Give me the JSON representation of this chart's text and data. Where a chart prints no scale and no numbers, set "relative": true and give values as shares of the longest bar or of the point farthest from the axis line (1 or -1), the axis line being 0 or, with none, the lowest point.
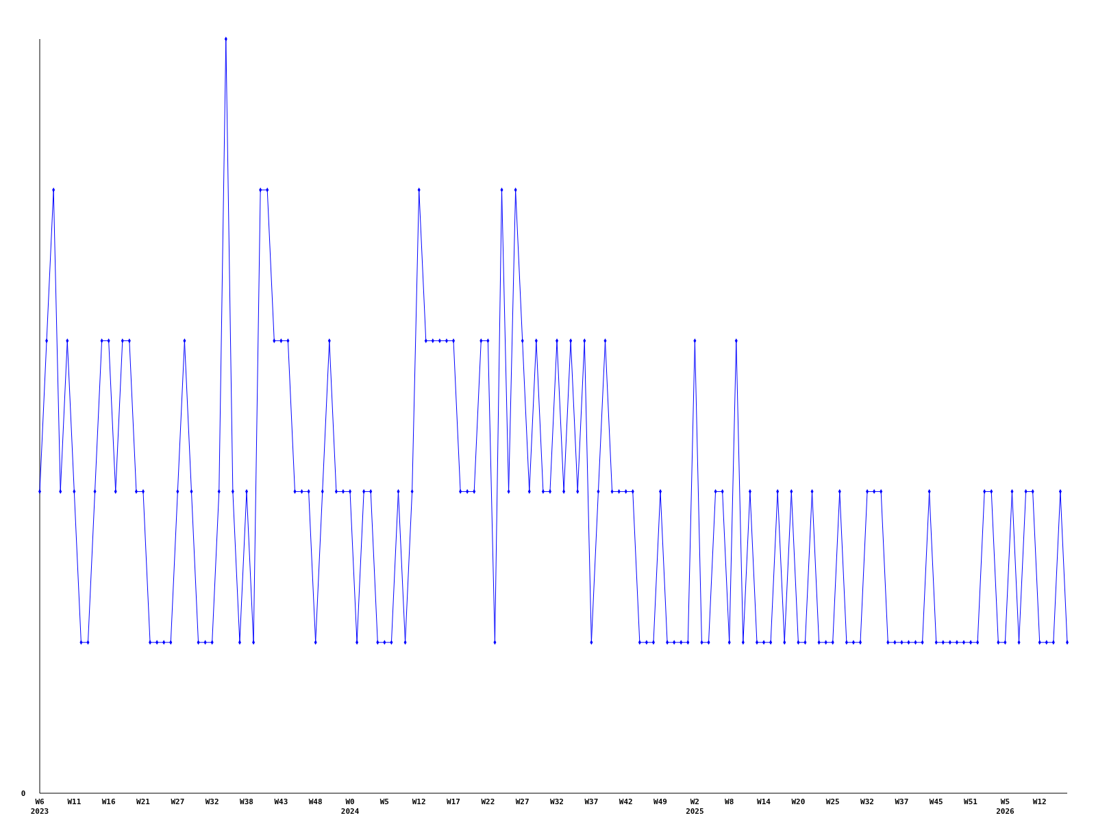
{
  "chart_data": {
    "type": "line",
    "relative": true,
    "annotations": [
      "0"
    ],
    "marker": "diamond",
    "line_style": "solid",
    "grid": false,
    "legend": false,
    "categories": [
      "W6\n2023",
      null,
      null,
      null,
      null,
      "W11",
      null,
      null,
      null,
      null,
      "W16",
      null,
      null,
      null,
      null,
      "W21",
      null,
      null,
      null,
      null,
      "W27",
      null,
      null,
      null,
      null,
      "W32",
      null,
      null,
      null,
      null,
      "W38",
      null,
      null,
      null,
      null,
      "W43",
      null,
      null,
      null,
      null,
      "W48",
      null,
      null,
      null,
      null,
      "W0\n2024",
      null,
      null,
      null,
      null,
      "W5",
      null,
      null,
      null,
      null,
      "W12",
      null,
      null,
      null,
      null,
      "W17",
      null,
      null,
      null,
      null,
      "W22",
      null,
      null,
      null,
      null,
      "W27",
      null,
      null,
      null,
      null,
      "W32",
      null,
      null,
      null,
      null,
      "W37",
      null,
      null,
      null,
      null,
      "W42",
      null,
      null,
      null,
      null,
      "W49",
      null,
      null,
      null,
      null,
      "W2\n2025",
      null,
      null,
      null,
      null,
      "W8",
      null,
      null,
      null,
      null,
      "W14",
      null,
      null,
      null,
      null,
      "W20",
      null,
      null,
      null,
      null,
      "W25",
      null,
      null,
      null,
      null,
      "W32",
      null,
      null,
      null,
      null,
      "W37",
      null,
      null,
      null,
      null,
      "W45",
      null,
      null,
      null,
      null,
      "W51",
      null,
      null,
      null,
      null,
      "W5\n2026",
      null,
      null,
      null,
      null,
      "W12",
      null,
      null,
      null,
      null
    ],
    "series": [
      {
        "color": "#0000ff",
        "values": [
          0.4,
          0.6,
          0.8,
          0.4,
          0.6,
          0.4,
          0.2,
          0.2,
          0.4,
          0.6,
          0.6,
          0.4,
          0.6,
          0.6,
          0.4,
          0.4,
          0.2,
          0.2,
          0.2,
          0.2,
          0.4,
          0.6,
          0.4,
          0.2,
          0.2,
          0.2,
          0.4,
          1,
          0.4,
          0.2,
          0.4,
          0.2,
          0.8,
          0.8,
          0.6,
          0.6,
          0.6,
          0.4,
          0.4,
          0.4,
          0.2,
          0.4,
          0.6,
          0.4,
          0.4,
          0.4,
          0.2,
          0.4,
          0.4,
          0.2,
          0.2,
          0.2,
          0.4,
          0.2,
          0.4,
          0.8,
          0.6,
          0.6,
          0.6,
          0.6,
          0.6,
          0.4,
          0.4,
          0.4,
          0.6,
          0.6,
          0.2,
          0.8,
          0.4,
          0.8,
          0.6,
          0.4,
          0.6,
          0.4,
          0.4,
          0.6,
          0.4,
          0.6,
          0.4,
          0.6,
          0.2,
          0.4,
          0.6,
          0.4,
          0.4,
          0.4,
          0.4,
          0.2,
          0.2,
          0.2,
          0.4,
          0.2,
          0.2,
          0.2,
          0.2,
          0.6,
          0.2,
          0.2,
          0.4,
          0.4,
          0.2,
          0.6,
          0.2,
          0.4,
          0.2,
          0.2,
          0.2,
          0.4,
          0.2,
          0.4,
          0.2,
          0.2,
          0.4,
          0.2,
          0.2,
          0.2,
          0.4,
          0.2,
          0.2,
          0.2,
          0.4,
          0.4,
          0.4,
          0.2,
          0.2,
          0.2,
          0.2,
          0.2,
          0.2,
          0.4,
          0.2,
          0.2,
          0.2,
          0.2,
          0.2,
          0.2,
          0.2,
          0.4,
          0.4,
          0.2,
          0.2,
          0.4,
          0.2,
          0.4,
          0.4,
          0.2,
          0.2,
          0.2,
          0.4,
          0.2
        ]
      }
    ]
  }
}
